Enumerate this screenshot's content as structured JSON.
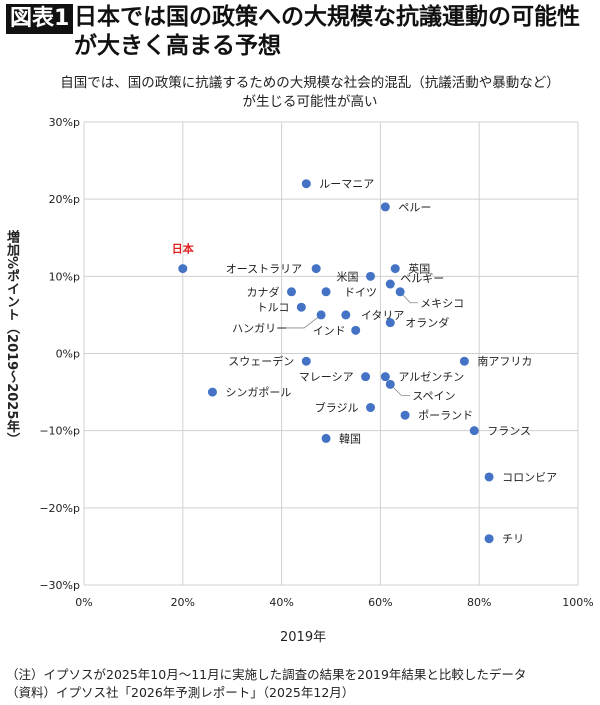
{
  "header": {
    "badge": "図表1",
    "title": "日本では国の政策への大規模な抗議運動の可能性が大きく高まる予想"
  },
  "chart_data": {
    "type": "scatter",
    "title": "自国では、国の政策に抗議するための大規模な社会的混乱（抗議活動や暴動など）が生じる可能性が高い",
    "xlabel": "2019年",
    "ylabel": "増加%ポイント（2019～2025年）",
    "xlim": [
      0,
      100
    ],
    "ylim": [
      -30,
      30
    ],
    "xticks": [
      "0%",
      "20%",
      "40%",
      "60%",
      "80%",
      "100%"
    ],
    "yticks": [
      "30%p",
      "20%p",
      "10%p",
      "0%p",
      "−10%p",
      "−20%p",
      "−30%p"
    ],
    "grid": true,
    "point_color": "#4472c4",
    "highlight_color": "#e02020",
    "points": [
      {
        "label": "日本",
        "x": 20,
        "y": 11,
        "highlight": true
      },
      {
        "label": "ルーマニア",
        "x": 45,
        "y": 22
      },
      {
        "label": "ペルー",
        "x": 61,
        "y": 19
      },
      {
        "label": "オーストラリア",
        "x": 47,
        "y": 11
      },
      {
        "label": "米国",
        "x": 58,
        "y": 10
      },
      {
        "label": "英国",
        "x": 63,
        "y": 11
      },
      {
        "label": "ベルギー",
        "x": 62,
        "y": 9
      },
      {
        "label": "メキシコ",
        "x": 64,
        "y": 8
      },
      {
        "label": "カナダ",
        "x": 42,
        "y": 8
      },
      {
        "label": "ドイツ",
        "x": 49,
        "y": 8
      },
      {
        "label": "トルコ",
        "x": 44,
        "y": 6
      },
      {
        "label": "ハンガリー",
        "x": 48,
        "y": 5
      },
      {
        "label": "イタリア",
        "x": 53,
        "y": 5
      },
      {
        "label": "オランダ",
        "x": 62,
        "y": 4
      },
      {
        "label": "インド",
        "x": 55,
        "y": 3
      },
      {
        "label": "スウェーデン",
        "x": 45,
        "y": -1
      },
      {
        "label": "南アフリカ",
        "x": 77,
        "y": -1
      },
      {
        "label": "マレーシア",
        "x": 57,
        "y": -3
      },
      {
        "label": "アルゼンチン",
        "x": 61,
        "y": -3
      },
      {
        "label": "スペイン",
        "x": 62,
        "y": -4
      },
      {
        "label": "シンガポール",
        "x": 26,
        "y": -5
      },
      {
        "label": "ブラジル",
        "x": 58,
        "y": -7
      },
      {
        "label": "ポーランド",
        "x": 65,
        "y": -8
      },
      {
        "label": "フランス",
        "x": 79,
        "y": -10
      },
      {
        "label": "韓国",
        "x": 49,
        "y": -11
      },
      {
        "label": "コロンビア",
        "x": 82,
        "y": -16
      },
      {
        "label": "チリ",
        "x": 82,
        "y": -24
      }
    ]
  },
  "notes": {
    "note": "（注）イプソスが2025年10月～11月に実施した調査の結果を2019年結果と比較したデータ",
    "source": "（資料）イプソス社「2026年予測レポート」（2025年12月）"
  }
}
